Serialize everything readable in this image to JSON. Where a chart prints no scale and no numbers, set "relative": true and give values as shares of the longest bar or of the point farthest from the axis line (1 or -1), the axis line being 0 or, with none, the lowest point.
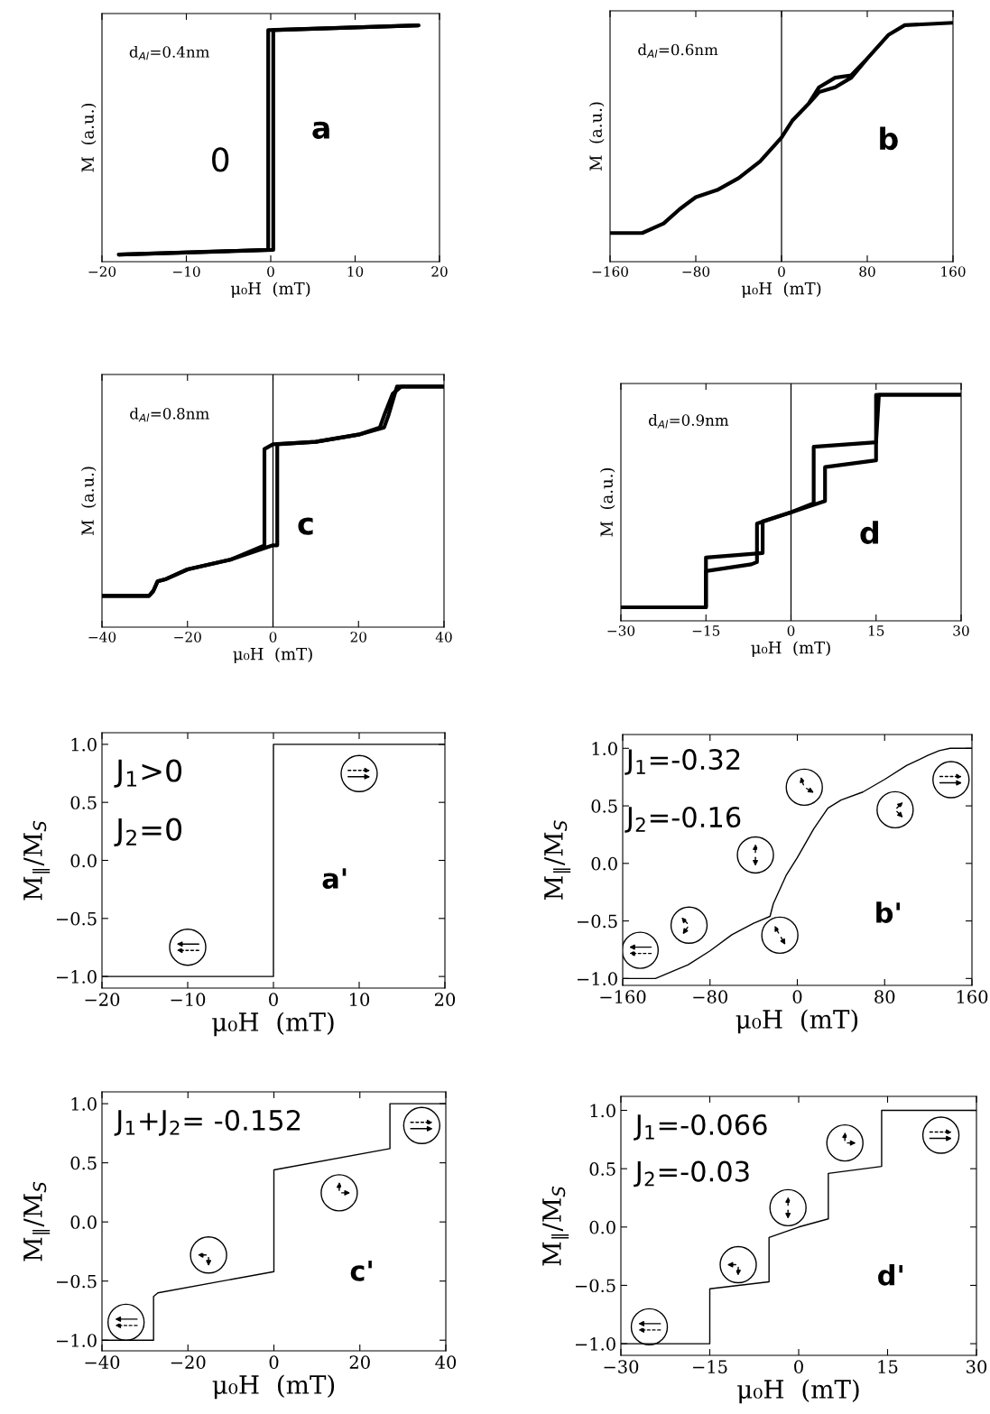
{
  "chart_data": [
    {
      "type": "line",
      "relative": true,
      "xlabel": "μ₀H  (mT)",
      "ylabel": "M  (a.u.)",
      "xlim": [
        -20,
        20
      ],
      "xticks": [
        {
          "value": -20,
          "label": "−20"
        },
        {
          "value": -10,
          "label": "−10"
        },
        0,
        10,
        20
      ],
      "annotations": [
        "d$_{Al}$=0.4nm",
        "0",
        "a"
      ],
      "series": [
        {
          "color": "#000000",
          "x": [
            -18,
            0.3,
            0.3,
            17.5
          ],
          "values": [
            0.03,
            0.05,
            0.98,
            1.0
          ]
        },
        {
          "color": "#000000",
          "x": [
            17.5,
            -0.3,
            -0.3,
            -18
          ],
          "values": [
            1.0,
            0.98,
            0.05,
            0.03
          ]
        }
      ]
    },
    {
      "type": "line",
      "relative": true,
      "xlabel": "μ₀H  (mT)",
      "ylabel": "M  (a.u.)",
      "xlim": [
        -160,
        160
      ],
      "xticks": [
        {
          "value": -160,
          "label": "−160"
        },
        {
          "value": -80,
          "label": "−80"
        },
        0,
        80,
        160
      ],
      "annotations": [
        "d$_{Al}$=0.6nm",
        "b"
      ],
      "ref_lines": [
        {
          "axis": "x",
          "value": 0,
          "color": "#000000"
        }
      ],
      "series": [
        {
          "color": "#000000",
          "x": [
            -160,
            -130,
            -110,
            -95,
            -80,
            -60,
            -40,
            -20,
            0,
            10,
            25,
            35,
            50,
            65,
            80,
            100,
            115,
            160,
            115,
            100,
            80,
            65,
            50,
            35,
            25
          ],
          "values": [
            0.12,
            0.12,
            0.16,
            0.22,
            0.27,
            0.3,
            0.35,
            0.42,
            0.52,
            0.59,
            0.66,
            0.71,
            0.73,
            0.77,
            0.85,
            0.95,
            0.99,
            1.0,
            0.99,
            0.95,
            0.85,
            0.78,
            0.77,
            0.73,
            0.66
          ]
        }
      ]
    },
    {
      "type": "line",
      "relative": true,
      "xlabel": "μ₀H  (mT)",
      "ylabel": "M  (a.u.)",
      "xlim": [
        -40,
        40
      ],
      "xticks": [
        {
          "value": -40,
          "label": "−40"
        },
        {
          "value": -20,
          "label": "−20"
        },
        0,
        20,
        40
      ],
      "annotations": [
        "d$_{Al}$=0.8nm",
        "c"
      ],
      "ref_lines": [
        {
          "axis": "x",
          "value": 0,
          "color": "#000000"
        }
      ],
      "series": [
        {
          "color": "#000000",
          "x": [
            -40,
            -29,
            -28,
            -27,
            -25,
            -20,
            -10,
            0,
            1,
            1,
            10,
            20,
            25,
            26,
            28,
            30,
            40
          ],
          "values": [
            0.13,
            0.13,
            0.15,
            0.19,
            0.2,
            0.24,
            0.28,
            0.34,
            0.34,
            0.76,
            0.77,
            0.8,
            0.83,
            0.88,
            0.97,
            1.0,
            1.0
          ]
        },
        {
          "color": "#000000",
          "x": [
            40,
            29,
            27,
            26,
            20,
            10,
            0,
            -2,
            -2,
            -10,
            -20,
            -25,
            -27,
            -28,
            -29,
            -40
          ],
          "values": [
            1.0,
            1.0,
            0.88,
            0.83,
            0.8,
            0.77,
            0.76,
            0.74,
            0.34,
            0.28,
            0.24,
            0.2,
            0.19,
            0.15,
            0.13,
            0.13
          ]
        }
      ]
    },
    {
      "type": "line",
      "relative": true,
      "xlabel": "μ₀H  (mT)",
      "ylabel": "M  (a.u.)",
      "xlim": [
        -30,
        30
      ],
      "xticks": [
        {
          "value": -30,
          "label": "−30"
        },
        {
          "value": -15,
          "label": "−15"
        },
        0,
        15,
        30
      ],
      "annotations": [
        "d$_{Al}$=0.9nm",
        "d"
      ],
      "ref_lines": [
        {
          "axis": "x",
          "value": 0,
          "color": "#000000"
        }
      ],
      "series": [
        {
          "color": "#000000",
          "x": [
            -30,
            -15,
            -15,
            -7,
            -6,
            -6,
            0,
            6,
            6,
            15,
            15,
            30
          ],
          "values": [
            0.06,
            0.06,
            0.22,
            0.25,
            0.26,
            0.43,
            0.48,
            0.53,
            0.68,
            0.71,
            1.0,
            1.0
          ]
        },
        {
          "color": "#000000",
          "x": [
            30,
            15.5,
            15,
            4,
            4,
            0,
            -5,
            -5,
            -15,
            -15,
            -30
          ],
          "values": [
            1.0,
            1.0,
            0.79,
            0.77,
            0.52,
            0.48,
            0.44,
            0.3,
            0.28,
            0.06,
            0.06
          ]
        }
      ]
    },
    {
      "type": "line",
      "xlabel": "μ₀H  (mT)",
      "ylabel": "M$_{∥}$/M$_{S}$",
      "xlim": [
        -20,
        20
      ],
      "ylim": [
        -1.1,
        1.1
      ],
      "xticks": [
        {
          "value": -20,
          "label": "−20"
        },
        {
          "value": -10,
          "label": "−10"
        },
        0,
        10,
        20
      ],
      "yticks": [
        {
          "value": -1.0,
          "label": "−1.0"
        },
        {
          "value": -0.5,
          "label": "−0.5"
        },
        {
          "value": 0.0,
          "label": "0.0"
        },
        {
          "value": 0.5,
          "label": "0.5"
        },
        {
          "value": 1.0,
          "label": "1.0"
        }
      ],
      "annotations": [
        "J$_{1}$>0",
        "J$_{2}$=0",
        "a'"
      ],
      "series": [
        {
          "color": "#000000",
          "x": [
            -20,
            0,
            0,
            20
          ],
          "values": [
            -1.0,
            -1.0,
            1.0,
            1.0
          ]
        }
      ]
    },
    {
      "type": "line",
      "xlabel": "μ₀H  (mT)",
      "ylabel": "M$_{∥}$/M$_{S}$",
      "xlim": [
        -160,
        160
      ],
      "ylim": [
        -1.06,
        1.12
      ],
      "xticks": [
        {
          "value": -160,
          "label": "−160"
        },
        {
          "value": -80,
          "label": "−80"
        },
        0,
        80,
        160
      ],
      "yticks": [
        {
          "value": -1.0,
          "label": "−1.0"
        },
        {
          "value": -0.5,
          "label": "−0.5"
        },
        {
          "value": 0.0,
          "label": "0.0"
        },
        {
          "value": 0.5,
          "label": "0.5"
        },
        {
          "value": 1.0,
          "label": "1.0"
        }
      ],
      "annotations": [
        "J$_{1}$=-0.32",
        "J$_{2}$=-0.16",
        "b'"
      ],
      "series": [
        {
          "color": "#000000",
          "x": [
            -160,
            -130,
            -100,
            -80,
            -60,
            -40,
            -25,
            -22,
            -10,
            0,
            15,
            28,
            40,
            60,
            80,
            100,
            120,
            130,
            140,
            160
          ],
          "values": [
            -1.0,
            -1.0,
            -0.88,
            -0.76,
            -0.62,
            -0.52,
            -0.46,
            -0.35,
            -0.1,
            0.05,
            0.3,
            0.48,
            0.55,
            0.62,
            0.73,
            0.85,
            0.94,
            0.98,
            1.0,
            1.0
          ]
        }
      ]
    },
    {
      "type": "line",
      "xlabel": "μ₀H  (mT)",
      "ylabel": "M$_{∥}$/M$_{S}$",
      "xlim": [
        -40,
        40
      ],
      "ylim": [
        -1.09,
        1.1
      ],
      "xticks": [
        {
          "value": -40,
          "label": "−40"
        },
        {
          "value": -20,
          "label": "−20"
        },
        0,
        20,
        40
      ],
      "yticks": [
        {
          "value": -1.0,
          "label": "−1.0"
        },
        {
          "value": -0.5,
          "label": "−0.5"
        },
        {
          "value": 0.0,
          "label": "0.0"
        },
        {
          "value": 0.5,
          "label": "0.5"
        },
        {
          "value": 1.0,
          "label": "1.0"
        }
      ],
      "annotations": [
        "J$_{1}$+J$_{2}$= -0.152",
        "c'"
      ],
      "series": [
        {
          "color": "#000000",
          "x": [
            -40,
            -28,
            -28,
            -27,
            0,
            0,
            27,
            27,
            40
          ],
          "values": [
            -1.0,
            -1.0,
            -0.63,
            -0.6,
            -0.42,
            0.44,
            0.62,
            1.0,
            1.0
          ]
        }
      ]
    },
    {
      "type": "line",
      "xlabel": "μ₀H  (mT)",
      "ylabel": "M$_{∥}$/M$_{S}$",
      "xlim": [
        -30,
        30
      ],
      "ylim": [
        -1.1,
        1.12
      ],
      "xticks": [
        {
          "value": -30,
          "label": "−30"
        },
        {
          "value": -15,
          "label": "−15"
        },
        0,
        15,
        30
      ],
      "yticks": [
        {
          "value": -1.0,
          "label": "−1.0"
        },
        {
          "value": -0.5,
          "label": "−0.5"
        },
        {
          "value": 0.0,
          "label": "0.0"
        },
        {
          "value": 0.5,
          "label": "0.5"
        },
        {
          "value": 1.0,
          "label": "1.0"
        }
      ],
      "annotations": [
        "J$_{1}$=-0.066",
        "J$_{2}$=-0.03",
        "d'"
      ],
      "series": [
        {
          "color": "#000000",
          "x": [
            -30,
            -15,
            -15,
            -5,
            -5,
            0,
            5,
            5,
            14,
            14,
            30
          ],
          "values": [
            -1.0,
            -1.0,
            -0.53,
            -0.47,
            -0.09,
            0.0,
            0.07,
            0.46,
            0.52,
            1.0,
            1.0
          ]
        }
      ]
    }
  ]
}
